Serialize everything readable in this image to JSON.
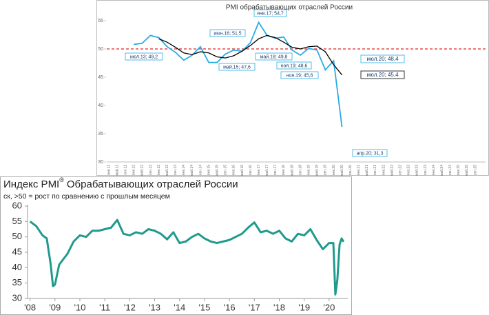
{
  "chart_data": [
    {
      "type": "line",
      "title": "PMI обрабатывающих отраслей России",
      "categories": [
        "янв.11",
        "май.11",
        "сен.11",
        "янв.12",
        "май.12",
        "сен.12",
        "янв.13",
        "май.13",
        "сен.13",
        "янв.14",
        "май.14",
        "сен.14",
        "янв.15",
        "май.15",
        "сен.15",
        "янв.16",
        "май.16",
        "сен.16",
        "янв.17",
        "май.17",
        "сен.17",
        "янв.18",
        "май.18",
        "сен.18",
        "янв.19",
        "май.19",
        "сен.19",
        "янв.20",
        "май.20",
        "сен.20",
        "янв.21",
        "май.21",
        "сен.21",
        "янв.22",
        "май.22",
        "сен.22",
        "янв.23",
        "май.23",
        "сен.23",
        "янв.24",
        "май.24",
        "сен.24",
        "янв.25",
        "май.25",
        "сен.25"
      ],
      "series": [
        {
          "color": "#29abe2",
          "values": [
            null,
            null,
            null,
            50.8,
            51.0,
            52.4,
            52.0,
            50.4,
            49.4,
            48.0,
            48.9,
            50.4,
            47.6,
            47.6,
            49.1,
            49.8,
            49.6,
            51.1,
            54.7,
            52.4,
            51.9,
            52.1,
            49.8,
            48.9,
            50.1,
            49.8,
            46.3,
            47.9,
            36.2,
            null,
            null,
            null,
            null,
            null,
            null,
            null,
            null,
            null,
            null,
            null,
            null,
            null,
            null,
            null,
            null
          ]
        },
        {
          "color": "#000000",
          "values": [
            null,
            null,
            null,
            null,
            null,
            null,
            51.8,
            51.2,
            50.3,
            49.3,
            49.0,
            49.5,
            49.3,
            48.6,
            48.4,
            48.8,
            49.6,
            50.6,
            51.8,
            52.4,
            52.0,
            51.2,
            50.3,
            50.0,
            50.4,
            50.5,
            49.5,
            47.2,
            45.4,
            null,
            null,
            null,
            null,
            null,
            null,
            null,
            null,
            null,
            null,
            null,
            null,
            null,
            null,
            null,
            null
          ]
        }
      ],
      "reference_line": 50,
      "reference_color": "#e02020",
      "ylim": [
        30,
        55
      ],
      "yticks": [
        30,
        35,
        40,
        45,
        50,
        55
      ],
      "annotations": [
        "июл.13; 49,2",
        "июн.16; 51,5",
        "янв.17; 54,7",
        "май.15; 47,6",
        "май.18; 49,8",
        "ноя.19; 48,6",
        "ноя.19; 45,6",
        "июл.20; 48,4",
        "июл.20; 45,4",
        "апр.20; 31,3"
      ]
    },
    {
      "type": "line",
      "title": "Индекс PMI",
      "title_mark": "®",
      "title_rest": "Обрабатывающих отраслей России",
      "subtitle": "ск, >50 = рост по сравнению с прошлым месяцем",
      "series": [
        {
          "color": "#1f9a8c",
          "x": [
            2008.0,
            2008.25,
            2008.5,
            2008.67,
            2008.83,
            2008.92,
            2009.0,
            2009.17,
            2009.5,
            2009.75,
            2010.0,
            2010.25,
            2010.5,
            2010.75,
            2011.0,
            2011.25,
            2011.5,
            2011.75,
            2012.0,
            2012.25,
            2012.5,
            2012.75,
            2013.0,
            2013.25,
            2013.5,
            2013.75,
            2014.0,
            2014.25,
            2014.5,
            2014.75,
            2015.0,
            2015.25,
            2015.5,
            2015.75,
            2016.0,
            2016.25,
            2016.5,
            2016.75,
            2017.0,
            2017.25,
            2017.5,
            2017.75,
            2018.0,
            2018.25,
            2018.5,
            2018.75,
            2019.0,
            2019.25,
            2019.5,
            2019.75,
            2020.0,
            2020.17,
            2020.25,
            2020.33,
            2020.42,
            2020.5,
            2020.58
          ],
          "values": [
            55.0,
            53.5,
            50.5,
            49.5,
            41.0,
            34.0,
            34.5,
            41.0,
            44.5,
            48.5,
            50.5,
            50.0,
            52.0,
            52.0,
            52.5,
            53.0,
            55.5,
            51.0,
            50.5,
            51.5,
            51.0,
            52.5,
            52.0,
            51.0,
            49.2,
            51.5,
            48.0,
            48.5,
            50.0,
            51.0,
            49.5,
            48.5,
            48.0,
            48.5,
            49.0,
            50.0,
            51.0,
            53.0,
            54.7,
            51.5,
            52.0,
            51.0,
            52.0,
            49.5,
            48.5,
            51.0,
            50.5,
            52.5,
            49.0,
            46.0,
            48.0,
            48.0,
            31.3,
            36.0,
            47.5,
            49.5,
            48.4
          ]
        }
      ],
      "xlim": [
        2007.9,
        2020.75
      ],
      "xticks": [
        {
          "value": 2008,
          "label": "'08"
        },
        {
          "value": 2009,
          "label": "'09"
        },
        {
          "value": 2010,
          "label": "'10"
        },
        {
          "value": 2011,
          "label": "'11"
        },
        {
          "value": 2012,
          "label": "'12"
        },
        {
          "value": 2013,
          "label": "'13"
        },
        {
          "value": 2014,
          "label": "'14"
        },
        {
          "value": 2015,
          "label": "'15"
        },
        {
          "value": 2016,
          "label": "'16"
        },
        {
          "value": 2017,
          "label": "'17"
        },
        {
          "value": 2018,
          "label": "'18"
        },
        {
          "value": 2019,
          "label": "'19"
        },
        {
          "value": 2020,
          "label": "'20"
        }
      ],
      "ylim": [
        30,
        60
      ],
      "yticks": [
        30,
        35,
        40,
        45,
        50,
        55,
        60
      ]
    }
  ]
}
